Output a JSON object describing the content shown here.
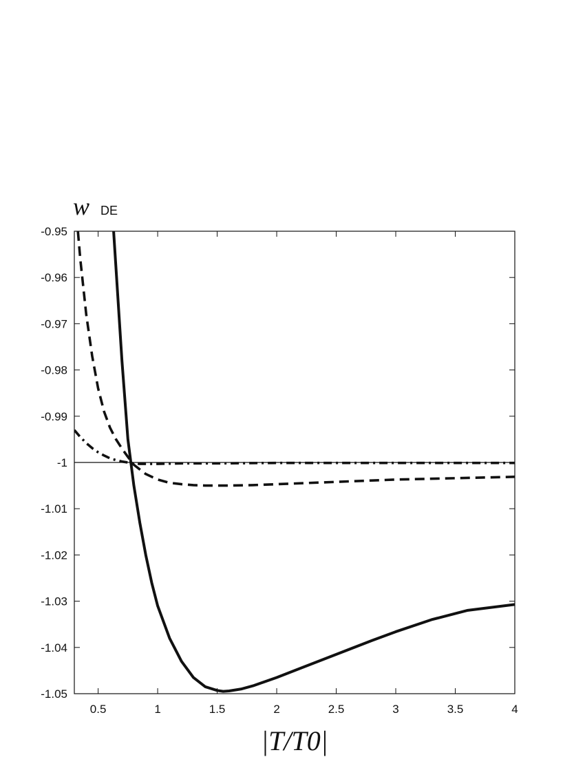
{
  "chart_data": {
    "type": "line",
    "title": "",
    "ylabel": {
      "main": "w",
      "sub": "DE"
    },
    "xlabel": "|T/T0|",
    "xlim": [
      0.3,
      4
    ],
    "ylim": [
      -1.05,
      -0.95
    ],
    "x_ticks": [
      0.5,
      1,
      1.5,
      2,
      2.5,
      3,
      3.5,
      4
    ],
    "x_tick_labels": [
      "0.5",
      "1",
      "1.5",
      "2",
      "2.5",
      "3",
      "3.5",
      "4"
    ],
    "y_ticks": [
      -0.95,
      -0.96,
      -0.97,
      -0.98,
      -0.99,
      -1,
      -1.01,
      -1.02,
      -1.03,
      -1.04,
      -1.05
    ],
    "y_tick_labels": [
      "-0.95",
      "-0.96",
      "-0.97",
      "-0.98",
      "-0.99",
      "-1",
      "-1.01",
      "-1.02",
      "-1.03",
      "-1.04",
      "-1.05"
    ],
    "reference_line": -1,
    "grid": false,
    "series": [
      {
        "style": "solid",
        "x": [
          0.63,
          0.7,
          0.75,
          0.8,
          0.85,
          0.9,
          0.95,
          1.0,
          1.1,
          1.2,
          1.3,
          1.4,
          1.5,
          1.55,
          1.6,
          1.7,
          1.8,
          2.0,
          2.2,
          2.5,
          2.8,
          3.0,
          3.3,
          3.6,
          4.0
        ],
        "y": [
          -0.95,
          -0.978,
          -0.995,
          -1.005,
          -1.013,
          -1.02,
          -1.026,
          -1.031,
          -1.038,
          -1.043,
          -1.0465,
          -1.0485,
          -1.0493,
          -1.0495,
          -1.0494,
          -1.049,
          -1.0483,
          -1.0465,
          -1.0445,
          -1.0415,
          -1.0385,
          -1.0366,
          -1.034,
          -1.032,
          -1.0307
        ]
      },
      {
        "style": "dashed",
        "x": [
          0.33,
          0.35,
          0.4,
          0.45,
          0.5,
          0.55,
          0.6,
          0.65,
          0.7,
          0.75,
          0.8,
          0.9,
          1.0,
          1.1,
          1.2,
          1.3,
          1.4,
          1.5,
          1.6,
          1.8,
          2.0,
          2.5,
          3.0,
          3.5,
          4.0
        ],
        "y": [
          -0.95,
          -0.956,
          -0.968,
          -0.977,
          -0.984,
          -0.989,
          -0.9925,
          -0.995,
          -0.997,
          -0.9988,
          -1.0005,
          -1.0025,
          -1.0037,
          -1.0044,
          -1.0047,
          -1.0049,
          -1.005,
          -1.005,
          -1.005,
          -1.0049,
          -1.0047,
          -1.0042,
          -1.0037,
          -1.0034,
          -1.0031
        ]
      },
      {
        "style": "dash-dot",
        "x": [
          0.3,
          0.35,
          0.4,
          0.45,
          0.5,
          0.55,
          0.6,
          0.65,
          0.7,
          0.75,
          0.8,
          0.85,
          0.9,
          1.0,
          1.2,
          1.5,
          2.0,
          3.0,
          4.0
        ],
        "y": [
          -0.993,
          -0.9945,
          -0.9958,
          -0.9969,
          -0.9978,
          -0.9985,
          -0.9991,
          -0.9995,
          -0.9998,
          -1.0,
          -1.0002,
          -1.0003,
          -1.0003,
          -1.0003,
          -1.0002,
          -1.0002,
          -1.0001,
          -1.0001,
          -1.0001
        ]
      }
    ]
  }
}
